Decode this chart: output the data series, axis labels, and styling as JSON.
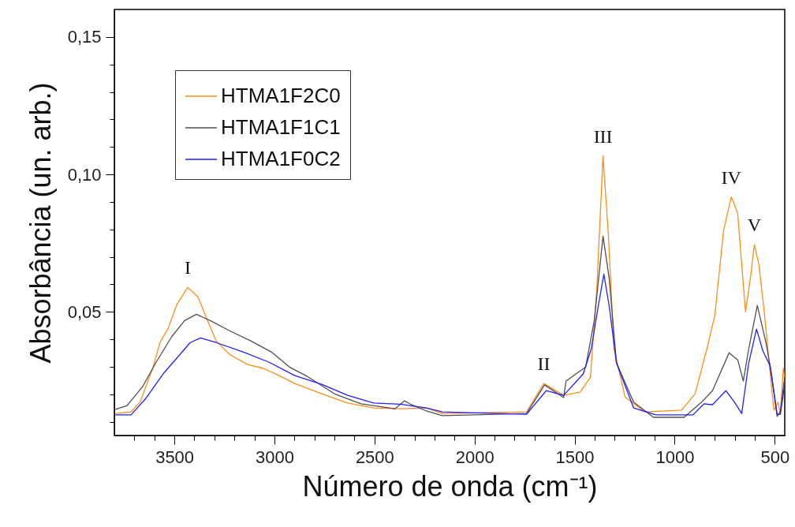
{
  "chart_data": {
    "type": "line",
    "xlabel": "Número de onda (cm⁻¹)",
    "ylabel": "Absorbância (un. arb.)",
    "xlim": [
      3800,
      450
    ],
    "ylim": [
      0.005,
      0.16
    ],
    "xticks": [
      {
        "value": 3700,
        "label": null
      },
      {
        "value": 3600,
        "label": null
      },
      3500,
      {
        "value": 3400,
        "label": null
      },
      {
        "value": 3300,
        "label": null
      },
      {
        "value": 3200,
        "label": null
      },
      {
        "value": 3100,
        "label": null
      },
      3000,
      {
        "value": 2900,
        "label": null
      },
      {
        "value": 2800,
        "label": null
      },
      {
        "value": 2700,
        "label": null
      },
      {
        "value": 2600,
        "label": null
      },
      2500,
      {
        "value": 2400,
        "label": null
      },
      {
        "value": 2300,
        "label": null
      },
      {
        "value": 2200,
        "label": null
      },
      {
        "value": 2100,
        "label": null
      },
      2000,
      {
        "value": 1900,
        "label": null
      },
      {
        "value": 1800,
        "label": null
      },
      {
        "value": 1700,
        "label": null
      },
      {
        "value": 1600,
        "label": null
      },
      1500,
      {
        "value": 1400,
        "label": null
      },
      {
        "value": 1300,
        "label": null
      },
      {
        "value": 1200,
        "label": null
      },
      {
        "value": 1100,
        "label": null
      },
      1000,
      {
        "value": 900,
        "label": null
      },
      {
        "value": 800,
        "label": null
      },
      {
        "value": 700,
        "label": null
      },
      {
        "value": 600,
        "label": null
      },
      500
    ],
    "yticks": [
      {
        "value": 0.01,
        "label": null
      },
      {
        "value": 0.02,
        "label": null
      },
      {
        "value": 0.03,
        "label": null
      },
      {
        "value": 0.04,
        "label": null
      },
      {
        "value": 0.05,
        "label": "0,05"
      },
      {
        "value": 0.06,
        "label": null
      },
      {
        "value": 0.07,
        "label": null
      },
      {
        "value": 0.08,
        "label": null
      },
      {
        "value": 0.09,
        "label": null
      },
      {
        "value": 0.1,
        "label": "0,10"
      },
      {
        "value": 0.11,
        "label": null
      },
      {
        "value": 0.12,
        "label": null
      },
      {
        "value": 0.13,
        "label": null
      },
      {
        "value": 0.14,
        "label": null
      },
      {
        "value": 0.15,
        "label": "0,15"
      }
    ],
    "grid": false,
    "legend": "top left",
    "line_style": "solid",
    "series": [
      {
        "name": "HTMA1F2C0",
        "color": "#ff8c1a",
        "x": [
          3795,
          3717,
          3670,
          3606,
          3571,
          3531,
          3488,
          3433,
          3382,
          3335,
          3291,
          3224,
          3134,
          3055,
          2976,
          2898,
          2764,
          2634,
          2504,
          2370,
          2240,
          2161,
          1740,
          1654,
          1555,
          1472,
          1421,
          1390,
          1358,
          1331,
          1303,
          1248,
          1150,
          965,
          898,
          839,
          799,
          756,
          717,
          685,
          665,
          646,
          622,
          602,
          579,
          551,
          524,
          504,
          484,
          472,
          457,
          450
        ],
        "values": [
          0.013,
          0.0136,
          0.0173,
          0.03,
          0.039,
          0.044,
          0.0526,
          0.0589,
          0.0554,
          0.0469,
          0.0394,
          0.0345,
          0.0308,
          0.0294,
          0.0268,
          0.0239,
          0.0202,
          0.0168,
          0.015,
          0.0147,
          0.015,
          0.013,
          0.0136,
          0.0239,
          0.0196,
          0.0208,
          0.0262,
          0.0572,
          0.1067,
          0.0775,
          0.0365,
          0.019,
          0.0136,
          0.0142,
          0.0202,
          0.0365,
          0.0489,
          0.0795,
          0.0918,
          0.0858,
          0.0672,
          0.05,
          0.062,
          0.0744,
          0.0672,
          0.0489,
          0.0285,
          0.0142,
          0.0171,
          0.013,
          0.0294,
          0.026
        ]
      },
      {
        "name": "HTMA1F1C1",
        "color": "#505050",
        "x": [
          3795,
          3736,
          3657,
          3591,
          3512,
          3449,
          3390,
          3315,
          3224,
          3118,
          3016,
          2921,
          2843,
          2701,
          2567,
          2398,
          2350,
          2320,
          2240,
          2161,
          1740,
          1650,
          1555,
          1543,
          1445,
          1402,
          1358,
          1327,
          1291,
          1205,
          1106,
          953,
          866,
          811,
          728,
          685,
          657,
          630,
          587,
          543,
          516,
          488,
          472,
          453
        ],
        "values": [
          0.0145,
          0.0159,
          0.023,
          0.0317,
          0.0411,
          0.0468,
          0.0491,
          0.0466,
          0.0431,
          0.0394,
          0.0354,
          0.0297,
          0.0268,
          0.0202,
          0.0165,
          0.0147,
          0.0176,
          0.0164,
          0.0139,
          0.0122,
          0.013,
          0.0234,
          0.0188,
          0.0248,
          0.0299,
          0.0468,
          0.0775,
          0.062,
          0.0314,
          0.0171,
          0.0116,
          0.0116,
          0.0171,
          0.0213,
          0.0351,
          0.0325,
          0.0248,
          0.0365,
          0.0523,
          0.0385,
          0.0274,
          0.0119,
          0.0137,
          0.0248
        ]
      },
      {
        "name": "HTMA1F0C2",
        "color": "#1f1fff",
        "x": [
          3795,
          3717,
          3646,
          3551,
          3472,
          3421,
          3370,
          3291,
          3157,
          3028,
          2898,
          2764,
          2634,
          2504,
          2370,
          2240,
          2161,
          1740,
          1642,
          1555,
          1457,
          1417,
          1382,
          1354,
          1327,
          1291,
          1205,
          1094,
          909,
          854,
          811,
          744,
          701,
          665,
          630,
          591,
          559,
          524,
          488,
          472,
          453
        ],
        "values": [
          0.0125,
          0.0125,
          0.0182,
          0.0279,
          0.0345,
          0.0388,
          0.0405,
          0.0388,
          0.0354,
          0.0317,
          0.0268,
          0.0236,
          0.0196,
          0.0168,
          0.0164,
          0.015,
          0.0136,
          0.0127,
          0.0213,
          0.0196,
          0.0274,
          0.0365,
          0.052,
          0.0637,
          0.052,
          0.0314,
          0.015,
          0.0125,
          0.0125,
          0.0165,
          0.0162,
          0.0213,
          0.0171,
          0.013,
          0.0314,
          0.0437,
          0.0357,
          0.0305,
          0.0127,
          0.0127,
          0.0222
        ]
      }
    ],
    "annotations": [
      {
        "text": "I",
        "x": 3433,
        "y": 0.0589
      },
      {
        "text": "II",
        "x": 1654,
        "y": 0.0239
      },
      {
        "text": "III",
        "x": 1358,
        "y": 0.1067
      },
      {
        "text": "IV",
        "x": 717,
        "y": 0.0918
      },
      {
        "text": "V",
        "x": 602,
        "y": 0.0744
      }
    ]
  }
}
